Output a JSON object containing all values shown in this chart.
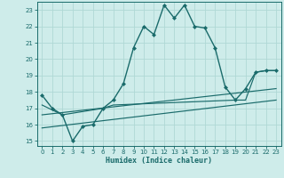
{
  "title": "",
  "xlabel": "Humidex (Indice chaleur)",
  "background_color": "#ceecea",
  "grid_color": "#afd8d5",
  "line_color": "#1a6b6b",
  "xlim": [
    -0.5,
    23.5
  ],
  "ylim": [
    14.7,
    23.5
  ],
  "yticks": [
    15,
    16,
    17,
    18,
    19,
    20,
    21,
    22,
    23
  ],
  "xticks": [
    0,
    1,
    2,
    3,
    4,
    5,
    6,
    7,
    8,
    9,
    10,
    11,
    12,
    13,
    14,
    15,
    16,
    17,
    18,
    19,
    20,
    21,
    22,
    23
  ],
  "series": [
    {
      "x": [
        0,
        1,
        2,
        3,
        4,
        5,
        6,
        7,
        8,
        9,
        10,
        11,
        12,
        13,
        14,
        15,
        16,
        17,
        18,
        19,
        20,
        21,
        22,
        23
      ],
      "y": [
        17.8,
        17.0,
        16.6,
        15.0,
        15.9,
        16.0,
        17.0,
        17.5,
        18.5,
        20.7,
        22.0,
        21.5,
        23.3,
        22.5,
        23.3,
        22.0,
        21.9,
        20.7,
        18.3,
        17.5,
        18.2,
        19.2,
        19.3,
        19.3
      ],
      "marker": "D",
      "markersize": 2.0,
      "linewidth": 1.0
    },
    {
      "x": [
        0,
        2,
        6,
        7,
        19,
        20,
        21,
        22,
        23
      ],
      "y": [
        17.2,
        16.6,
        17.0,
        17.2,
        17.5,
        17.5,
        19.2,
        19.3,
        19.3
      ],
      "marker": null,
      "markersize": 0,
      "linewidth": 0.85
    },
    {
      "x": [
        0,
        23
      ],
      "y": [
        16.6,
        18.2
      ],
      "marker": null,
      "markersize": 0,
      "linewidth": 0.85
    },
    {
      "x": [
        0,
        23
      ],
      "y": [
        15.8,
        17.5
      ],
      "marker": null,
      "markersize": 0,
      "linewidth": 0.85
    }
  ]
}
